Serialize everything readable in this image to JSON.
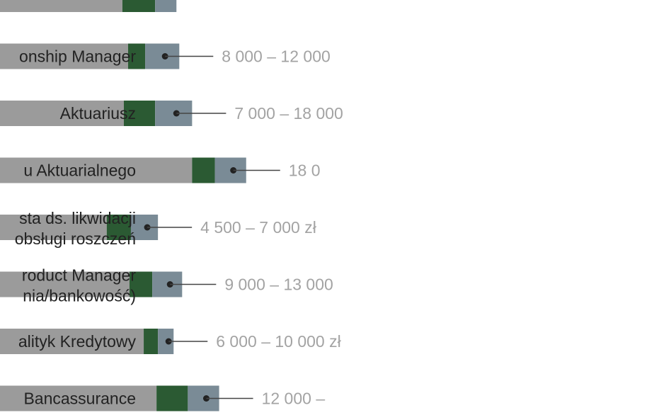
{
  "chart_data": {
    "type": "bar",
    "orientation": "horizontal",
    "stacked": true,
    "segments": [
      "base",
      "middle",
      "top"
    ],
    "colors": {
      "base": "#9b9b9b",
      "middle": "#2b5a33",
      "top": "#7a8b96",
      "marker": "#222222",
      "connector": "#444444",
      "range_text": "#a3a3a3",
      "label_text": "#222222"
    },
    "rows": [
      {
        "label_lines": [],
        "range_label": "",
        "base": 14500,
        "middle": 1150,
        "top": 750
      },
      {
        "label_lines": [
          "onship Manager"
        ],
        "range_label": "8 000 – 12 000",
        "base": 14700,
        "middle": 600,
        "top": 1200
      },
      {
        "label_lines": [
          "Aktuariusz"
        ],
        "range_label": "7 000 – 18 000",
        "base": 14550,
        "middle": 1100,
        "top": 1300
      },
      {
        "label_lines": [
          "u Aktuarialnego"
        ],
        "range_label": "18 0",
        "base": 16950,
        "middle": 800,
        "top": 1100
      },
      {
        "label_lines": [
          "sta ds. likwidacji",
          "obsługi roszczeń"
        ],
        "range_label": "4 500 – 7 000 zł",
        "base": 13950,
        "middle": 850,
        "top": 950
      },
      {
        "label_lines": [
          "roduct Manager",
          "nia/bankowość)"
        ],
        "range_label": "9 000 – 13 000",
        "base": 14750,
        "middle": 800,
        "top": 1050
      },
      {
        "label_lines": [
          "alityk Kredytowy"
        ],
        "range_label": "6 000 – 10 000 zł",
        "base": 15250,
        "middle": 500,
        "top": 550
      },
      {
        "label_lines": [
          "Bancassurance"
        ],
        "range_label": "12 000 –",
        "base": 15700,
        "middle": 1100,
        "top": 1100
      }
    ],
    "title": "",
    "xlabel": "",
    "ylabel": "",
    "xlim": [
      10000,
      20000
    ],
    "grid": false,
    "legend": "none"
  }
}
